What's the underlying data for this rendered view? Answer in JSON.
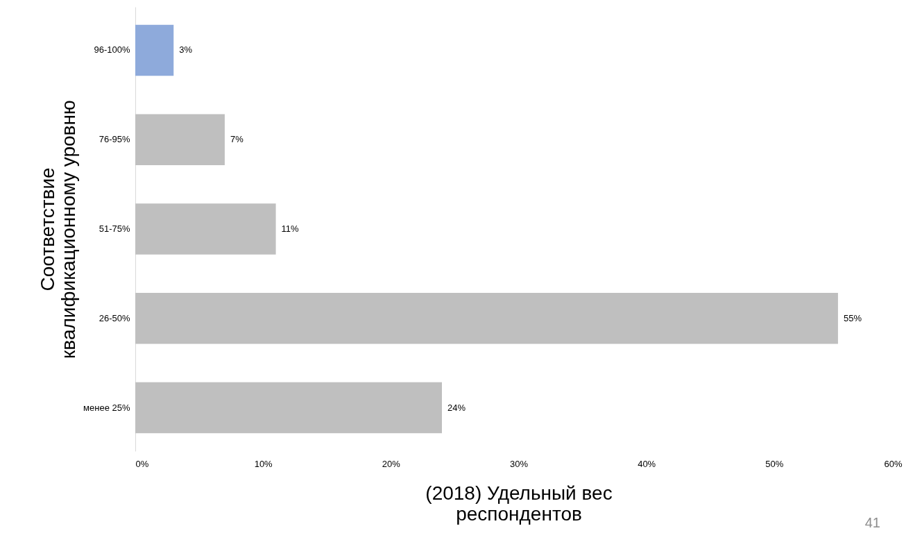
{
  "chart_data": {
    "type": "bar",
    "orientation": "horizontal",
    "xlabel": "(2018) Удельный вес респондентов",
    "ylabel": "Соответствие квалификационному уровню",
    "categories": [
      "96-100%",
      "76-95%",
      "51-75%",
      "26-50%",
      "менее 25%"
    ],
    "values": [
      3,
      7,
      11,
      55,
      24
    ],
    "colors": [
      "#8eaadb",
      "#bfbfbf",
      "#bfbfbf",
      "#bfbfbf",
      "#bfbfbf"
    ],
    "value_labels": [
      "3%",
      "7%",
      "11%",
      "55%",
      "24%"
    ],
    "xlim": [
      0,
      60
    ],
    "xticks": [
      {
        "value": 0,
        "label": "0%"
      },
      {
        "value": 10,
        "label": "10%"
      },
      {
        "value": 20,
        "label": "20%"
      },
      {
        "value": 30,
        "label": "30%"
      },
      {
        "value": 40,
        "label": "40%"
      },
      {
        "value": 50,
        "label": "50%"
      },
      {
        "value": 60,
        "label": "60%"
      }
    ],
    "grid": false,
    "annotations": [
      "41"
    ]
  }
}
